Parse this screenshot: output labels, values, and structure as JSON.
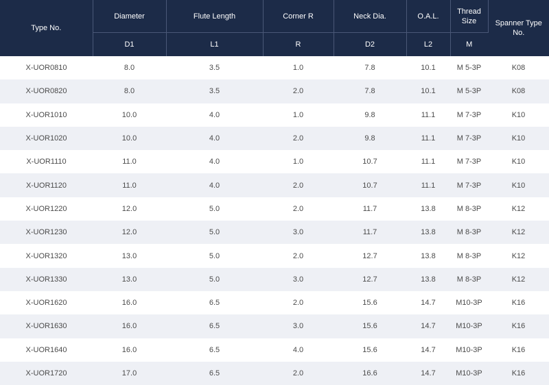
{
  "header": {
    "type_no": "Type No.",
    "diameter": "Diameter",
    "flute_length": "Flute Length",
    "corner_r": "Corner R",
    "neck_dia": "Neck Dia.",
    "oal": "O.A.L.",
    "thread_size_line1": "Thread",
    "thread_size_line2": "Size",
    "spanner_type_line1": "Spanner Type",
    "spanner_type_line2": "No.",
    "symbols": [
      "D1",
      "L1",
      "R",
      "D2",
      "L2",
      "M"
    ]
  },
  "rows": [
    [
      "X-UOR0810",
      "8.0",
      "3.5",
      "1.0",
      "7.8",
      "10.1",
      "M 5-3P",
      "K08"
    ],
    [
      "X-UOR0820",
      "8.0",
      "3.5",
      "2.0",
      "7.8",
      "10.1",
      "M 5-3P",
      "K08"
    ],
    [
      "X-UOR1010",
      "10.0",
      "4.0",
      "1.0",
      "9.8",
      "11.1",
      "M 7-3P",
      "K10"
    ],
    [
      "X-UOR1020",
      "10.0",
      "4.0",
      "2.0",
      "9.8",
      "11.1",
      "M 7-3P",
      "K10"
    ],
    [
      "X-UOR1110",
      "11.0",
      "4.0",
      "1.0",
      "10.7",
      "11.1",
      "M 7-3P",
      "K10"
    ],
    [
      "X-UOR1120",
      "11.0",
      "4.0",
      "2.0",
      "10.7",
      "11.1",
      "M 7-3P",
      "K10"
    ],
    [
      "X-UOR1220",
      "12.0",
      "5.0",
      "2.0",
      "11.7",
      "13.8",
      "M 8-3P",
      "K12"
    ],
    [
      "X-UOR1230",
      "12.0",
      "5.0",
      "3.0",
      "11.7",
      "13.8",
      "M 8-3P",
      "K12"
    ],
    [
      "X-UOR1320",
      "13.0",
      "5.0",
      "2.0",
      "12.7",
      "13.8",
      "M 8-3P",
      "K12"
    ],
    [
      "X-UOR1330",
      "13.0",
      "5.0",
      "3.0",
      "12.7",
      "13.8",
      "M 8-3P",
      "K12"
    ],
    [
      "X-UOR1620",
      "16.0",
      "6.5",
      "2.0",
      "15.6",
      "14.7",
      "M10-3P",
      "K16"
    ],
    [
      "X-UOR1630",
      "16.0",
      "6.5",
      "3.0",
      "15.6",
      "14.7",
      "M10-3P",
      "K16"
    ],
    [
      "X-UOR1640",
      "16.0",
      "6.5",
      "4.0",
      "15.6",
      "14.7",
      "M10-3P",
      "K16"
    ],
    [
      "X-UOR1720",
      "17.0",
      "6.5",
      "2.0",
      "16.6",
      "14.7",
      "M10-3P",
      "K16"
    ]
  ]
}
